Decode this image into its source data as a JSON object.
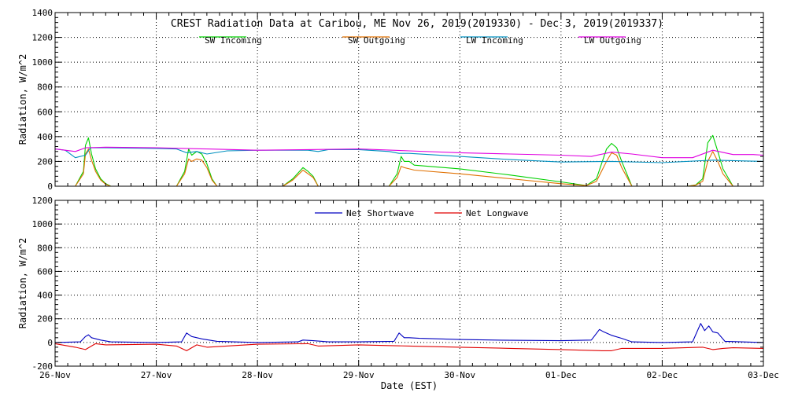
{
  "chart_data": [
    {
      "type": "line",
      "title": "CREST Radiation Data at Caribou, ME   Nov 26, 2019(2019330) - Dec  3, 2019(2019337)",
      "ylabel": "Radiation, W/m^2",
      "xlabel": "",
      "ylim": [
        0,
        1400
      ],
      "yticks": [
        0,
        200,
        400,
        600,
        800,
        1000,
        1200,
        1400
      ],
      "xlim": [
        0,
        7
      ],
      "xtick_labels": [
        "26-Nov",
        "27-Nov",
        "28-Nov",
        "29-Nov",
        "30-Nov",
        "01-Dec",
        "02-Dec",
        "03-Dec"
      ],
      "grid": true,
      "legend_position": "top, two rows of two",
      "series": [
        {
          "name": "SW Incoming",
          "color": "#00d000",
          "x": [
            0.0,
            0.2,
            0.28,
            0.3,
            0.33,
            0.36,
            0.4,
            0.45,
            0.5,
            0.55,
            0.6,
            0.7,
            1.0,
            1.2,
            1.28,
            1.32,
            1.35,
            1.4,
            1.45,
            1.5,
            1.55,
            1.6,
            1.7,
            2.0,
            2.25,
            2.35,
            2.45,
            2.5,
            2.55,
            2.6,
            2.7,
            3.0,
            3.3,
            3.38,
            3.42,
            3.45,
            3.5,
            3.55,
            4.0,
            4.5,
            5.0,
            5.25,
            5.35,
            5.45,
            5.5,
            5.55,
            5.6,
            5.7,
            6.0,
            6.25,
            6.33,
            6.4,
            6.45,
            6.5,
            6.55,
            6.6,
            6.7,
            7.0
          ],
          "values": [
            0,
            0,
            120,
            330,
            390,
            260,
            140,
            60,
            20,
            0,
            0,
            0,
            0,
            0,
            120,
            300,
            250,
            280,
            260,
            180,
            60,
            0,
            0,
            0,
            0,
            60,
            150,
            120,
            80,
            0,
            0,
            0,
            0,
            100,
            240,
            200,
            200,
            170,
            140,
            90,
            35,
            5,
            60,
            300,
            345,
            310,
            200,
            0,
            0,
            0,
            10,
            60,
            350,
            410,
            280,
            140,
            0,
            0
          ]
        },
        {
          "name": "SW Outgoing",
          "color": "#e07000",
          "x": [
            0.0,
            0.2,
            0.28,
            0.3,
            0.33,
            0.36,
            0.4,
            0.45,
            0.5,
            0.55,
            0.6,
            0.7,
            1.0,
            1.2,
            1.28,
            1.32,
            1.35,
            1.4,
            1.45,
            1.5,
            1.55,
            1.6,
            1.7,
            2.0,
            2.25,
            2.35,
            2.45,
            2.5,
            2.55,
            2.6,
            2.7,
            3.0,
            3.3,
            3.38,
            3.42,
            3.45,
            3.5,
            3.55,
            4.0,
            4.5,
            5.0,
            5.25,
            5.35,
            5.45,
            5.5,
            5.55,
            5.6,
            5.7,
            6.0,
            6.25,
            6.33,
            6.4,
            6.45,
            6.5,
            6.55,
            6.6,
            6.7,
            7.0
          ],
          "values": [
            0,
            0,
            100,
            260,
            300,
            210,
            120,
            50,
            15,
            0,
            0,
            0,
            0,
            0,
            100,
            220,
            200,
            220,
            210,
            150,
            50,
            0,
            0,
            0,
            0,
            50,
            130,
            100,
            70,
            0,
            0,
            0,
            0,
            70,
            160,
            150,
            140,
            130,
            100,
            60,
            20,
            5,
            40,
            200,
            270,
            250,
            150,
            0,
            0,
            0,
            8,
            40,
            200,
            280,
            200,
            100,
            0,
            0
          ]
        },
        {
          "name": "LW Incoming",
          "color": "#0090c0",
          "x": [
            0.0,
            0.1,
            0.2,
            0.3,
            0.35,
            0.5,
            1.0,
            1.2,
            1.3,
            1.4,
            1.5,
            1.7,
            2.0,
            2.5,
            2.6,
            2.7,
            3.0,
            3.3,
            3.4,
            3.5,
            4.0,
            4.5,
            5.0,
            5.5,
            6.0,
            6.5,
            7.0
          ],
          "values": [
            300,
            290,
            230,
            250,
            310,
            310,
            305,
            300,
            270,
            280,
            260,
            285,
            290,
            290,
            280,
            295,
            295,
            280,
            265,
            265,
            240,
            215,
            195,
            200,
            190,
            210,
            200
          ]
        },
        {
          "name": "LW Outgoing",
          "color": "#e000e0",
          "x": [
            0.0,
            0.2,
            0.3,
            0.5,
            1.0,
            1.5,
            2.0,
            2.5,
            3.0,
            3.5,
            4.0,
            4.5,
            5.0,
            5.3,
            5.5,
            5.7,
            6.0,
            6.3,
            6.5,
            6.7,
            6.9,
            7.0
          ],
          "values": [
            300,
            280,
            310,
            315,
            310,
            300,
            290,
            295,
            300,
            285,
            270,
            260,
            250,
            240,
            275,
            260,
            230,
            230,
            290,
            255,
            255,
            250
          ]
        }
      ]
    },
    {
      "type": "line",
      "title": "",
      "ylabel": "Radiation, W/m^2",
      "xlabel": "Date (EST)",
      "ylim": [
        -200,
        1200
      ],
      "yticks": [
        -200,
        0,
        200,
        400,
        600,
        800,
        1000,
        1200
      ],
      "xlim": [
        0,
        7
      ],
      "xtick_labels": [
        "26-Nov",
        "27-Nov",
        "28-Nov",
        "29-Nov",
        "30-Nov",
        "01-Dec",
        "02-Dec",
        "03-Dec"
      ],
      "grid": true,
      "legend_position": "top, one row",
      "series": [
        {
          "name": "Net Shortwave",
          "color": "#0000c0",
          "x": [
            0.0,
            0.25,
            0.3,
            0.33,
            0.36,
            0.45,
            0.55,
            1.0,
            1.25,
            1.3,
            1.35,
            1.45,
            1.6,
            2.0,
            2.4,
            2.45,
            2.55,
            2.7,
            3.0,
            3.35,
            3.4,
            3.45,
            3.5,
            3.6,
            4.0,
            4.5,
            5.0,
            5.3,
            5.38,
            5.42,
            5.5,
            5.6,
            5.7,
            6.0,
            6.3,
            6.38,
            6.42,
            6.46,
            6.5,
            6.55,
            6.62,
            7.0
          ],
          "values": [
            0,
            5,
            50,
            65,
            40,
            20,
            5,
            0,
            5,
            80,
            50,
            30,
            10,
            0,
            5,
            20,
            15,
            5,
            5,
            10,
            80,
            40,
            40,
            35,
            25,
            18,
            15,
            20,
            110,
            90,
            60,
            35,
            5,
            0,
            5,
            160,
            100,
            140,
            90,
            80,
            10,
            0
          ]
        },
        {
          "name": "Net Longwave",
          "color": "#e00000",
          "x": [
            0.0,
            0.2,
            0.3,
            0.4,
            0.5,
            1.0,
            1.2,
            1.3,
            1.4,
            1.5,
            2.0,
            2.5,
            2.6,
            3.0,
            3.5,
            4.0,
            4.5,
            5.0,
            5.4,
            5.5,
            5.6,
            6.0,
            6.4,
            6.5,
            6.6,
            6.7,
            7.0
          ],
          "values": [
            -10,
            -40,
            -60,
            -10,
            -20,
            -15,
            -30,
            -70,
            -20,
            -40,
            -15,
            -10,
            -30,
            -20,
            -30,
            -40,
            -50,
            -60,
            -70,
            -70,
            -50,
            -50,
            -40,
            -60,
            -50,
            -45,
            -50
          ]
        }
      ]
    }
  ]
}
